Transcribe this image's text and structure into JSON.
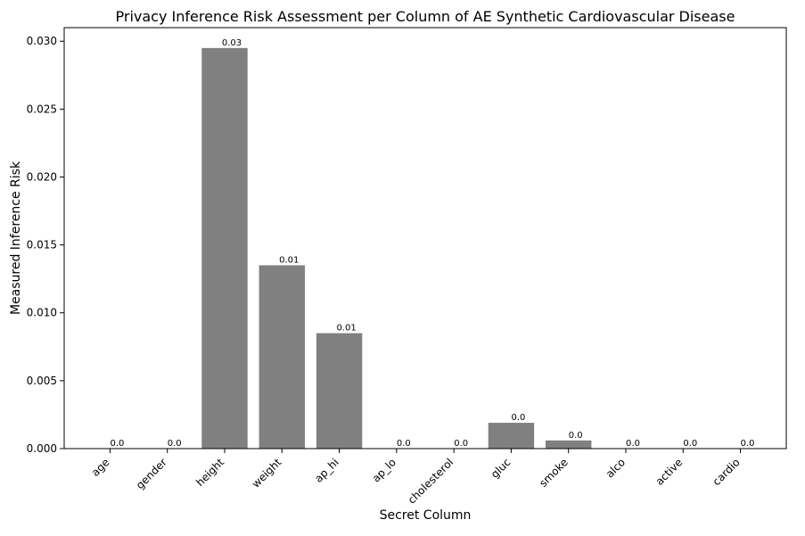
{
  "chart_data": {
    "type": "bar",
    "title": "Privacy Inference Risk Assessment per Column of AE Synthetic Cardiovascular Disease",
    "xlabel": "Secret Column",
    "ylabel": "Measured Inference Risk",
    "categories": [
      "age",
      "gender",
      "height",
      "weight",
      "ap_hi",
      "ap_lo",
      "cholesterol",
      "gluc",
      "smoke",
      "alco",
      "active",
      "cardio"
    ],
    "values": [
      0.0,
      0.0,
      0.0295,
      0.0135,
      0.0085,
      0.0,
      0.0,
      0.0019,
      0.0006,
      0.0,
      0.0,
      0.0
    ],
    "data_labels": [
      "0.0",
      "0.0",
      "0.03",
      "0.01",
      "0.01",
      "0.0",
      "0.0",
      "0.0",
      "0.0",
      "0.0",
      "0.0",
      "0.0"
    ],
    "ylim": [
      0,
      0.031
    ],
    "yticks": [
      0.0,
      0.005,
      0.01,
      0.015,
      0.02,
      0.025,
      0.03
    ],
    "ytick_labels": [
      "0.000",
      "0.005",
      "0.010",
      "0.015",
      "0.020",
      "0.025",
      "0.030"
    ],
    "bar_color": "#808080",
    "grid": false,
    "legend": "none"
  }
}
